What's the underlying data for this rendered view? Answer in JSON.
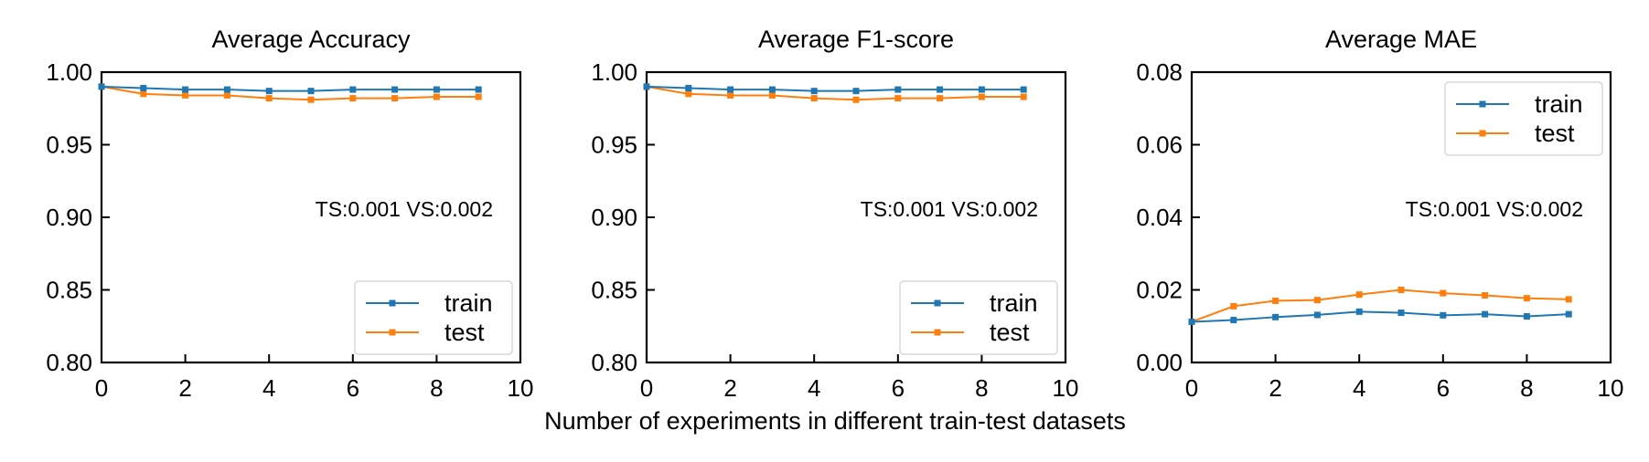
{
  "figure": {
    "shared_xlabel": "Number of experiments in different train-test datasets"
  },
  "colors": {
    "train": "#1f77b4",
    "test": "#ff7f0e",
    "axes": "#000000",
    "legend_border": "#d9d9d9"
  },
  "chart_data": [
    {
      "type": "line",
      "title": "Average Accuracy",
      "xlabel": "",
      "ylabel": "",
      "annotation": "TS:0.001 VS:0.002",
      "x": [
        0,
        1,
        2,
        3,
        4,
        5,
        6,
        7,
        8,
        9
      ],
      "xlim": [
        0,
        10
      ],
      "ylim": [
        0.8,
        1.0
      ],
      "xticks": [
        0,
        2,
        4,
        6,
        8,
        10
      ],
      "xtick_labels": [
        "0",
        "2",
        "4",
        "6",
        "8",
        "10"
      ],
      "yticks": [
        0.8,
        0.85,
        0.9,
        0.95,
        1.0
      ],
      "ytick_labels": [
        "0.80",
        "0.85",
        "0.90",
        "0.95",
        "1.00"
      ],
      "grid": false,
      "legend_placement": "lower-right",
      "series": [
        {
          "name": "train",
          "values": [
            0.99,
            0.989,
            0.988,
            0.988,
            0.987,
            0.987,
            0.988,
            0.988,
            0.988,
            0.988
          ]
        },
        {
          "name": "test",
          "values": [
            0.99,
            0.985,
            0.984,
            0.984,
            0.982,
            0.981,
            0.982,
            0.982,
            0.983,
            0.983
          ]
        }
      ]
    },
    {
      "type": "line",
      "title": "Average F1-score",
      "xlabel": "",
      "ylabel": "",
      "annotation": "TS:0.001 VS:0.002",
      "x": [
        0,
        1,
        2,
        3,
        4,
        5,
        6,
        7,
        8,
        9
      ],
      "xlim": [
        0,
        10
      ],
      "ylim": [
        0.8,
        1.0
      ],
      "xticks": [
        0,
        2,
        4,
        6,
        8,
        10
      ],
      "xtick_labels": [
        "0",
        "2",
        "4",
        "6",
        "8",
        "10"
      ],
      "yticks": [
        0.8,
        0.85,
        0.9,
        0.95,
        1.0
      ],
      "ytick_labels": [
        "0.80",
        "0.85",
        "0.90",
        "0.95",
        "1.00"
      ],
      "grid": false,
      "legend_placement": "lower-right",
      "series": [
        {
          "name": "train",
          "values": [
            0.99,
            0.989,
            0.988,
            0.988,
            0.987,
            0.987,
            0.988,
            0.988,
            0.988,
            0.988
          ]
        },
        {
          "name": "test",
          "values": [
            0.99,
            0.985,
            0.984,
            0.984,
            0.982,
            0.981,
            0.982,
            0.982,
            0.983,
            0.983
          ]
        }
      ]
    },
    {
      "type": "line",
      "title": "Average MAE",
      "xlabel": "",
      "ylabel": "",
      "annotation": "TS:0.001 VS:0.002",
      "x": [
        0,
        1,
        2,
        3,
        4,
        5,
        6,
        7,
        8,
        9
      ],
      "xlim": [
        0,
        10
      ],
      "ylim": [
        0.0,
        0.08
      ],
      "xticks": [
        0,
        2,
        4,
        6,
        8,
        10
      ],
      "xtick_labels": [
        "0",
        "2",
        "4",
        "6",
        "8",
        "10"
      ],
      "yticks": [
        0.0,
        0.02,
        0.04,
        0.06,
        0.08
      ],
      "ytick_labels": [
        "0.00",
        "0.02",
        "0.04",
        "0.06",
        "0.08"
      ],
      "grid": false,
      "legend_placement": "upper-right",
      "series": [
        {
          "name": "train",
          "values": [
            0.0112,
            0.0117,
            0.0125,
            0.0131,
            0.014,
            0.0137,
            0.013,
            0.0133,
            0.0127,
            0.0133
          ]
        },
        {
          "name": "test",
          "values": [
            0.0112,
            0.0155,
            0.017,
            0.0172,
            0.0187,
            0.02,
            0.0191,
            0.0185,
            0.0177,
            0.0174
          ]
        }
      ]
    }
  ]
}
